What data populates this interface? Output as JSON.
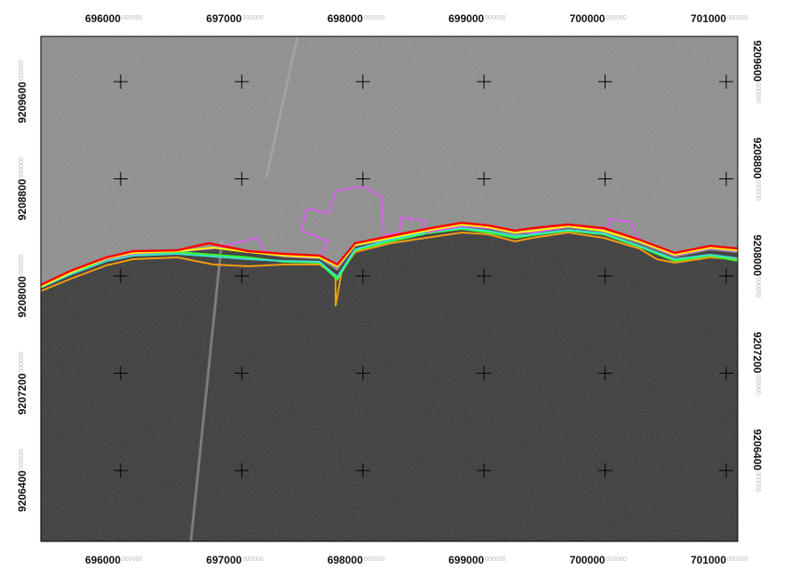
{
  "map": {
    "xlim": [
      695341,
      701095
    ],
    "ylim": [
      9205816,
      9209973
    ],
    "xticks": [
      696000,
      697000,
      698000,
      699000,
      700000,
      701000
    ],
    "yticks": [
      9209600,
      9208800,
      9208000,
      9207200,
      9206400
    ],
    "tick_suffix": "000000"
  }
}
